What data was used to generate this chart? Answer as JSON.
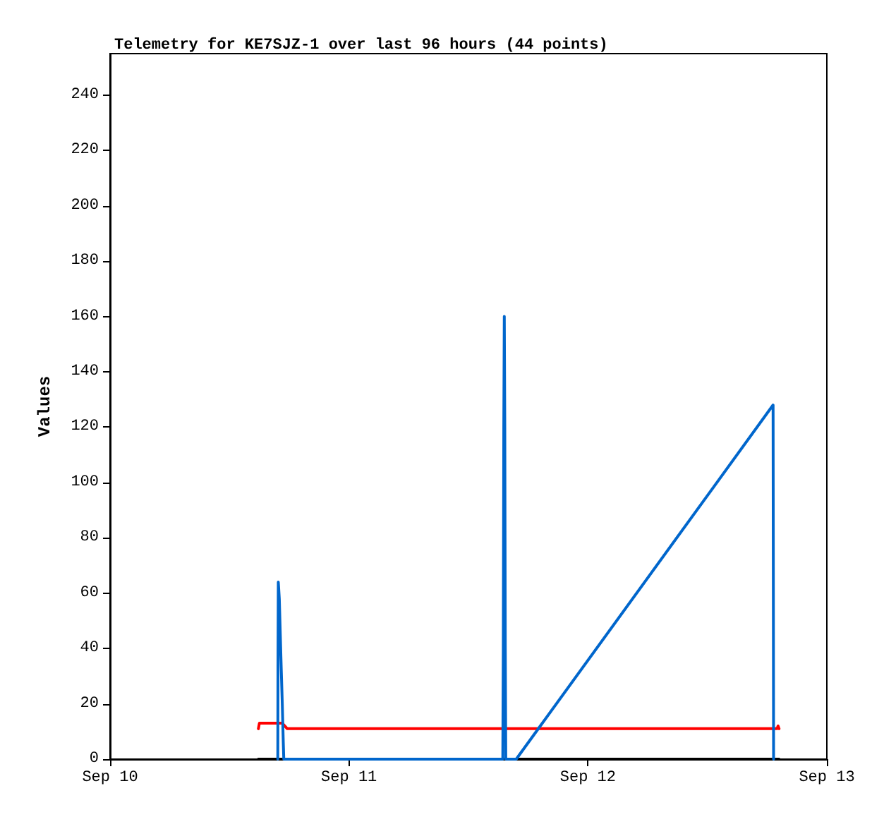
{
  "chart_data": {
    "type": "line",
    "title": "Telemetry for KE7SJZ-1 over last 96 hours (44 points)",
    "ylabel": "Values",
    "xlim": [
      "--09-10T00:00",
      "--09-13T00:00"
    ],
    "xticks": [
      {
        "value": "--09-10T00:00",
        "label": "Sep 10"
      },
      {
        "value": "--09-11T00:00",
        "label": "Sep 11"
      },
      {
        "value": "--09-12T00:00",
        "label": "Sep 12"
      },
      {
        "value": "--09-13T00:00",
        "label": "Sep 13"
      }
    ],
    "ylim": [
      0,
      255
    ],
    "yticks": [
      0,
      20,
      40,
      60,
      80,
      100,
      120,
      140,
      160,
      180,
      200,
      220,
      240
    ],
    "grid": false,
    "marker": "none",
    "line_style": "solid",
    "series": [
      {
        "color": "#000000",
        "x": [
          "--09-10T14:54",
          "--09-12T19:12"
        ],
        "values": [
          0,
          0
        ]
      },
      {
        "color": "#ff0000",
        "x": [
          "--09-10T14:54",
          "--09-10T15:00",
          "--09-10T17:18",
          "--09-10T17:48",
          "--09-12T19:00",
          "--09-12T19:06",
          "--09-12T19:12"
        ],
        "values": [
          11,
          13,
          13,
          11,
          11,
          12,
          11
        ]
      },
      {
        "color": "#0066cc",
        "x": [
          "--09-10T16:51",
          "--09-10T16:52",
          "--09-10T16:54",
          "--09-10T17:00",
          "--09-10T17:06",
          "--09-10T17:12",
          "--09-10T17:18",
          "--09-10T17:24",
          "--09-10T17:27",
          "--09-11T15:27",
          "--09-11T15:30",
          "--09-11T15:33",
          "--09-11T15:36",
          "--09-11T15:39",
          "--09-11T15:42",
          "--09-11T15:45",
          "--09-11T16:48",
          "--09-12T18:36",
          "--09-12T18:39"
        ],
        "values": [
          0,
          32,
          64,
          58,
          45,
          32,
          20,
          6,
          0,
          0,
          40,
          120,
          160,
          120,
          40,
          0,
          0,
          128,
          0
        ]
      }
    ]
  }
}
